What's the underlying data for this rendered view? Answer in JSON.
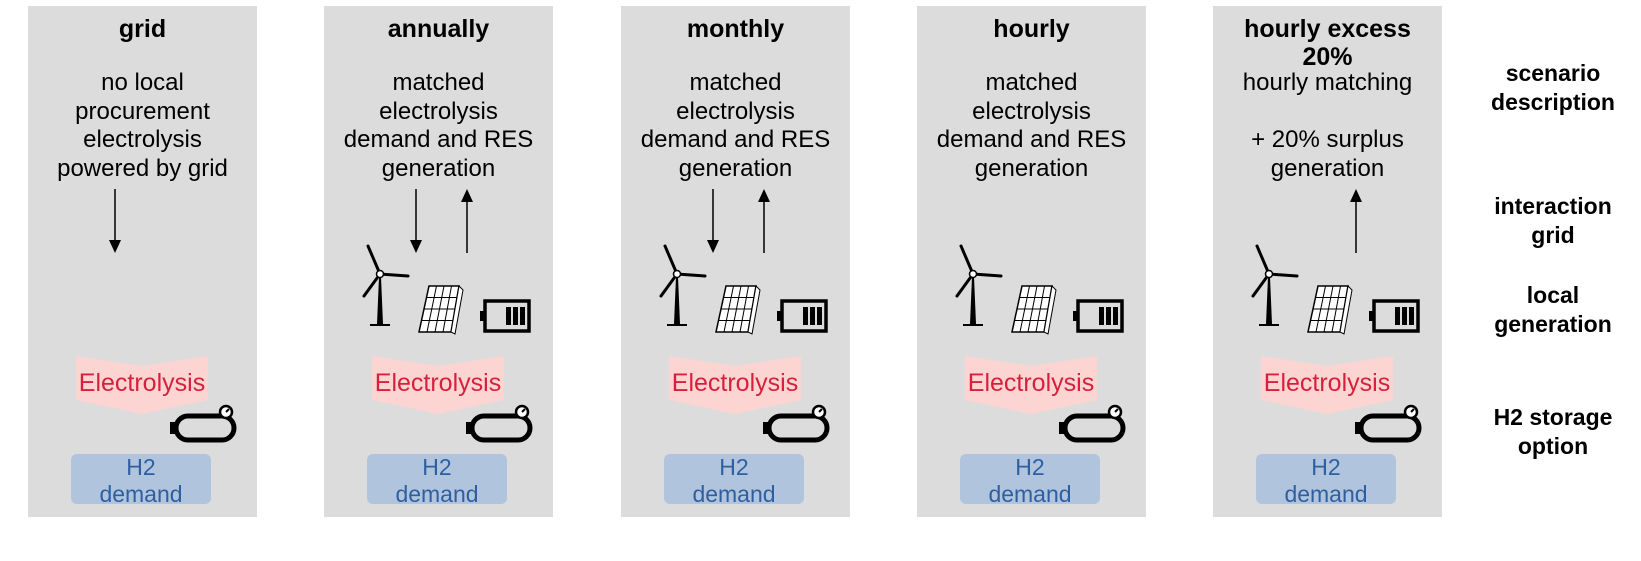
{
  "panels": [
    {
      "title": "grid",
      "description": "no local\nprocurement\nelectrolysis\npowered by grid",
      "arrow_down": true,
      "arrow_up": false,
      "local_generation": false,
      "electrolysis": "Electrolysis",
      "h2_demand": "H2\ndemand"
    },
    {
      "title": "annually",
      "description": "matched\nelectrolysis\ndemand and RES\ngeneration",
      "arrow_down": true,
      "arrow_up": true,
      "local_generation": true,
      "electrolysis": "Electrolysis",
      "h2_demand": "H2\ndemand"
    },
    {
      "title": "monthly",
      "description": "matched\nelectrolysis\ndemand and RES\ngeneration",
      "arrow_down": true,
      "arrow_up": true,
      "local_generation": true,
      "electrolysis": "Electrolysis",
      "h2_demand": "H2\ndemand"
    },
    {
      "title": "hourly",
      "description": "matched\nelectrolysis\ndemand and RES\ngeneration",
      "arrow_down": false,
      "arrow_up": false,
      "local_generation": true,
      "electrolysis": "Electrolysis",
      "h2_demand": "H2\ndemand"
    },
    {
      "title": "hourly excess\n20%",
      "description": "hourly matching\n\n+ 20% surplus\ngeneration",
      "arrow_down": false,
      "arrow_up": true,
      "local_generation": true,
      "electrolysis": "Electrolysis",
      "h2_demand": "H2\ndemand"
    }
  ],
  "row_labels": {
    "scenario": "scenario\ndescription",
    "interaction": "interaction\ngrid",
    "local": "local\ngeneration",
    "storage": "H2 storage\noption"
  },
  "colors": {
    "panel_bg": "#dcdcdc",
    "electrolysis_fill": "#fcd4d2",
    "electrolysis_text": "#d6213c",
    "h2_box": "#b0c4de",
    "h2_text": "#2e5fa0"
  },
  "icons": [
    "arrow-down-icon",
    "arrow-up-icon",
    "wind-turbine-icon",
    "solar-panel-icon",
    "battery-icon",
    "h2-tank-icon"
  ]
}
